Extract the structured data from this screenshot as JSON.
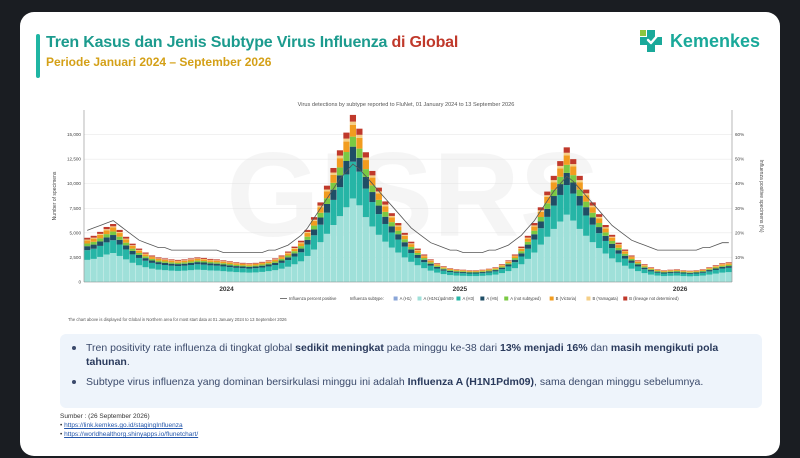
{
  "header": {
    "title_main": "Tren Kasus dan Jenis Subtype Virus Influenza ",
    "title_highlight": "di Global",
    "subtitle": "Periode Januari 2024 – September  2026",
    "logo_text": "Kemenkes",
    "colors": {
      "title": "#1c9b8e",
      "highlight": "#c0392b",
      "subtitle": "#d4a017",
      "logo": "#1aa99a"
    }
  },
  "chart_data": {
    "type": "bar",
    "title": "Virus detections by subtype reported to FluNet, 01 January 2024 to 13 September 2026",
    "ylabel": "Number of specimens",
    "y2label": "Influenza positive specimens (%)",
    "ylim": [
      0,
      17500
    ],
    "y2lim": [
      0,
      70
    ],
    "yticks": [
      "0",
      "2,500",
      "5,000",
      "7,500",
      "10,000",
      "12,500",
      "15,000"
    ],
    "y2ticks": [
      "10%",
      "20%",
      "30%",
      "40%",
      "50%",
      "60%"
    ],
    "year_labels": [
      "2024",
      "2025",
      "2026"
    ],
    "stacked": true,
    "legend_position": "bottom",
    "watermark": "GISRS",
    "totals": [
      4500,
      4700,
      5100,
      5600,
      5900,
      5300,
      4600,
      3900,
      3400,
      3000,
      2700,
      2500,
      2400,
      2300,
      2250,
      2300,
      2400,
      2500,
      2450,
      2350,
      2300,
      2200,
      2100,
      2000,
      1950,
      1900,
      1950,
      2050,
      2200,
      2400,
      2700,
      3100,
      3600,
      4200,
      5300,
      6600,
      8100,
      9800,
      11600,
      13400,
      15200,
      17000,
      15600,
      13200,
      11300,
      9600,
      8200,
      7000,
      6000,
      5000,
      4100,
      3400,
      2800,
      2300,
      1900,
      1600,
      1400,
      1300,
      1250,
      1200,
      1200,
      1250,
      1350,
      1500,
      1800,
      2200,
      2800,
      3600,
      4700,
      6000,
      7600,
      9200,
      10800,
      12300,
      13700,
      12500,
      10800,
      9400,
      8100,
      6900,
      5800,
      4800,
      4000,
      3300,
      2700,
      2200,
      1800,
      1500,
      1300,
      1200,
      1250,
      1300,
      1200,
      1150,
      1200,
      1300,
      1500,
      1700,
      1900,
      2000
    ],
    "series": [
      {
        "name": "A (H1N1)pdm09",
        "color": "#9fe0d9",
        "share": 0.5
      },
      {
        "name": "A (H3)",
        "color": "#26b5a6",
        "share": 0.22
      },
      {
        "name": "A (H5)",
        "color": "#1f4e66",
        "share": 0.09
      },
      {
        "name": "A (not subtyped)",
        "color": "#7ac943",
        "share": 0.06
      },
      {
        "name": "B (Victoria)",
        "color": "#f29c1f",
        "share": 0.07
      },
      {
        "name": "B (Yamagata)",
        "color": "#f5cf87",
        "share": 0.02
      },
      {
        "name": "B (lineage not determined)",
        "color": "#c0392b",
        "share": 0.04
      }
    ],
    "line_series": {
      "name": "Influenza percent positive",
      "color": "#555555",
      "values": [
        21,
        22,
        23,
        24,
        25,
        23,
        21,
        19,
        17,
        16,
        15,
        14,
        14,
        13,
        13,
        13,
        13,
        13,
        13,
        13,
        13,
        12,
        12,
        12,
        12,
        12,
        12,
        12,
        13,
        13,
        14,
        15,
        17,
        19,
        22,
        26,
        30,
        34,
        38,
        42,
        45,
        48,
        46,
        43,
        40,
        37,
        34,
        31,
        28,
        25,
        22,
        20,
        18,
        16,
        15,
        14,
        13,
        13,
        12,
        12,
        12,
        12,
        13,
        13,
        14,
        15,
        17,
        19,
        22,
        25,
        29,
        33,
        37,
        40,
        43,
        41,
        38,
        35,
        32,
        29,
        26,
        23,
        21,
        19,
        17,
        16,
        15,
        14,
        13,
        13,
        13,
        13,
        13,
        13,
        13,
        14,
        14,
        15,
        16,
        16
      ]
    },
    "legend_lines": [
      "Influenza percent positive",
      "Influenza subtype:",
      "A (H1)",
      "A (H1N1)pdm09",
      "A (H3)",
      "A (H5)",
      "A (not subtyped)",
      "B (Victoria)",
      "B (Yamagata)",
      "B (lineage not determined)"
    ],
    "legend_swatches": [
      "#555555",
      "",
      "#8aa6d8",
      "#9fe0d9",
      "#26b5a6",
      "#1f4e66",
      "#7ac943",
      "#f29c1f",
      "#f5cf87",
      "#c0392b"
    ],
    "footnote": "The chart above is displayed for Global in Northern area for most start data at 01 January 2024 to 13 September 2026"
  },
  "summary": {
    "bullet1": {
      "p1": "Tren positivity rate influenza di tingkat global ",
      "b1": "sedikit meningkat",
      "p2": "  pada minggu ke-38 dari ",
      "b2": "13% menjadi 16%",
      "p3": " dan ",
      "b3": "masih mengikuti pola tahunan",
      "p4": "."
    },
    "bullet2": {
      "p1": "Subtype virus influenza yang dominan bersirkulasi minggu ini adalah ",
      "b1": "Influenza A (H1N1Pdm09)",
      "p2": ", sama dengan minggu sebelumnya."
    }
  },
  "source": {
    "label": "Sumber : (26 September 2026)",
    "link1": "https://link.kemkes.go.id/stagingInfluenza",
    "link2": "https://worldhealthorg.shinyapps.io/flunetchart/"
  }
}
